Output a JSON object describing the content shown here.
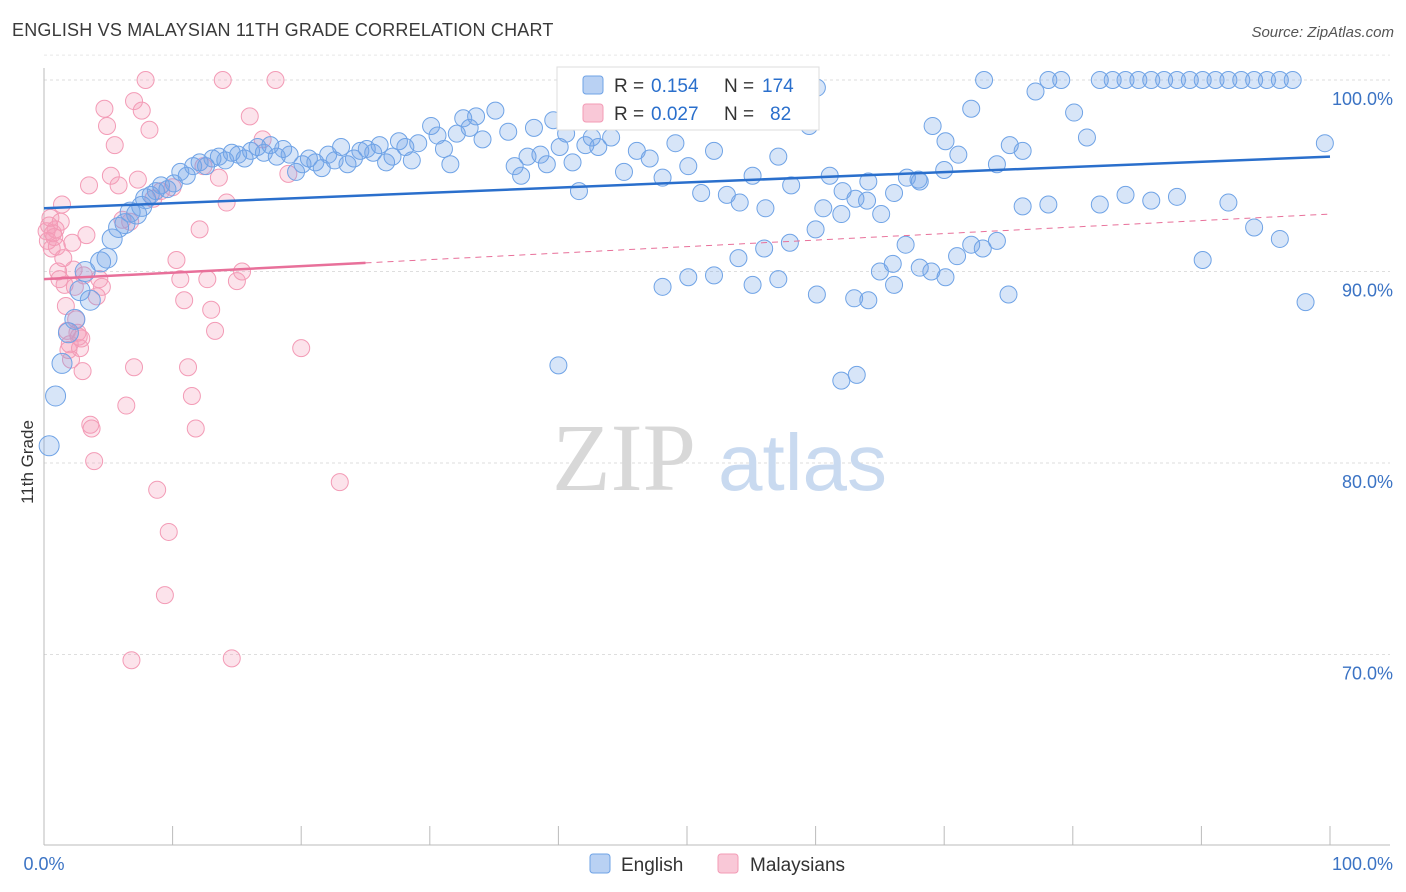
{
  "title": "ENGLISH VS MALAYSIAN 11TH GRADE CORRELATION CHART",
  "source": "Source: ZipAtlas.com",
  "watermark": {
    "zip": "ZIP",
    "atlas": "atlas"
  },
  "legend_box": {
    "rows": [
      {
        "r_label": "R =",
        "r_value": "0.154",
        "n_label": "N =",
        "n_value": "174",
        "color": "#6fa3e6"
      },
      {
        "r_label": "R =",
        "r_value": "0.027",
        "n_label": "N =",
        "n_value": "82",
        "color": "#f39bb6"
      }
    ]
  },
  "bottom_legend": [
    "English",
    "Malaysians"
  ],
  "chart_data": {
    "type": "scatter",
    "title": "ENGLISH VS MALAYSIAN 11TH GRADE CORRELATION CHART",
    "xlabel": "",
    "ylabel": "11th Grade",
    "xlim": [
      0,
      100
    ],
    "ylim": [
      60.5,
      101.5
    ],
    "x_tick_labels": [
      "0.0%",
      "100.0%"
    ],
    "y_ticks": [
      70,
      80,
      90,
      100
    ],
    "y_tick_labels": [
      "70.0%",
      "80.0%",
      "90.0%",
      "100.0%"
    ],
    "grid": true,
    "legend_position": "top-center",
    "series": [
      {
        "name": "English",
        "color": "#6fa3e6",
        "line_color": "#2a6fcc",
        "trend": {
          "x": [
            0,
            100
          ],
          "y": [
            93.3,
            96.0
          ],
          "dashed_from": null
        },
        "points": [
          [
            0.4,
            80.9
          ],
          [
            0.9,
            83.5
          ],
          [
            1.4,
            85.2
          ],
          [
            1.9,
            86.8
          ],
          [
            2.4,
            87.5
          ],
          [
            2.8,
            89.0
          ],
          [
            3.2,
            90.0
          ],
          [
            3.6,
            88.5
          ],
          [
            4.4,
            90.5
          ],
          [
            4.9,
            90.7
          ],
          [
            5.3,
            91.7
          ],
          [
            5.8,
            92.3
          ],
          [
            6.3,
            92.5
          ],
          [
            6.7,
            93.1
          ],
          [
            7.2,
            93.0
          ],
          [
            7.6,
            93.4
          ],
          [
            7.9,
            93.8
          ],
          [
            8.3,
            94.0
          ],
          [
            8.7,
            94.2
          ],
          [
            9.1,
            94.5
          ],
          [
            9.6,
            94.3
          ],
          [
            10.1,
            94.6
          ],
          [
            10.6,
            95.2
          ],
          [
            11.1,
            95.0
          ],
          [
            11.6,
            95.5
          ],
          [
            12.1,
            95.7
          ],
          [
            12.6,
            95.5
          ],
          [
            13.1,
            95.9
          ],
          [
            13.6,
            96.0
          ],
          [
            14.1,
            95.8
          ],
          [
            14.6,
            96.2
          ],
          [
            15.1,
            96.1
          ],
          [
            15.6,
            95.9
          ],
          [
            16.1,
            96.3
          ],
          [
            16.6,
            96.5
          ],
          [
            17.1,
            96.2
          ],
          [
            17.6,
            96.6
          ],
          [
            18.1,
            96.0
          ],
          [
            18.6,
            96.4
          ],
          [
            19.1,
            96.1
          ],
          [
            19.6,
            95.2
          ],
          [
            20.1,
            95.6
          ],
          [
            20.6,
            95.9
          ],
          [
            21.1,
            95.7
          ],
          [
            21.6,
            95.4
          ],
          [
            22.1,
            96.1
          ],
          [
            22.6,
            95.8
          ],
          [
            23.1,
            96.5
          ],
          [
            23.6,
            95.6
          ],
          [
            24.1,
            95.9
          ],
          [
            24.6,
            96.3
          ],
          [
            25.1,
            96.4
          ],
          [
            25.6,
            96.2
          ],
          [
            26.1,
            96.6
          ],
          [
            26.6,
            95.7
          ],
          [
            27.1,
            96.0
          ],
          [
            27.6,
            96.8
          ],
          [
            28.1,
            96.5
          ],
          [
            28.6,
            95.8
          ],
          [
            29.1,
            96.7
          ],
          [
            30.1,
            97.6
          ],
          [
            30.6,
            97.1
          ],
          [
            31.1,
            96.4
          ],
          [
            31.6,
            95.6
          ],
          [
            32.1,
            97.2
          ],
          [
            32.6,
            98.0
          ],
          [
            33.1,
            97.5
          ],
          [
            33.6,
            98.1
          ],
          [
            34.1,
            96.9
          ],
          [
            35.1,
            98.4
          ],
          [
            36.1,
            97.3
          ],
          [
            36.6,
            95.5
          ],
          [
            37.1,
            95.0
          ],
          [
            37.6,
            96.0
          ],
          [
            38.1,
            97.5
          ],
          [
            38.6,
            96.1
          ],
          [
            39.1,
            95.6
          ],
          [
            39.6,
            97.9
          ],
          [
            40.1,
            96.5
          ],
          [
            40.6,
            97.2
          ],
          [
            41.1,
            95.7
          ],
          [
            41.6,
            94.2
          ],
          [
            42.1,
            96.6
          ],
          [
            42.6,
            97.0
          ],
          [
            43.1,
            96.5
          ],
          [
            44.1,
            97.0
          ],
          [
            45.1,
            95.2
          ],
          [
            46.1,
            96.3
          ],
          [
            47.1,
            95.9
          ],
          [
            48.1,
            94.9
          ],
          [
            49.1,
            96.7
          ],
          [
            50.1,
            95.5
          ],
          [
            51.1,
            94.1
          ],
          [
            52.1,
            96.3
          ],
          [
            53.1,
            94.0
          ],
          [
            54.1,
            93.6
          ],
          [
            55.1,
            95.0
          ],
          [
            56.1,
            93.3
          ],
          [
            57.1,
            96.0
          ],
          [
            58.1,
            94.5
          ],
          [
            58.9,
            100.0
          ],
          [
            59.5,
            97.6
          ],
          [
            60.1,
            99.6
          ],
          [
            60.6,
            93.3
          ],
          [
            61.1,
            95.0
          ],
          [
            62.1,
            94.2
          ],
          [
            63.1,
            93.8
          ],
          [
            64.1,
            94.7
          ],
          [
            65.1,
            93.0
          ],
          [
            66.1,
            94.1
          ],
          [
            67.1,
            94.9
          ],
          [
            68.1,
            94.7
          ],
          [
            69.1,
            97.6
          ],
          [
            70.1,
            96.8
          ],
          [
            71.1,
            96.1
          ],
          [
            72.1,
            98.5
          ],
          [
            73.1,
            100.0
          ],
          [
            74.1,
            95.6
          ],
          [
            75.1,
            96.6
          ],
          [
            76.1,
            96.3
          ],
          [
            77.1,
            99.4
          ],
          [
            78.1,
            100.0
          ],
          [
            79.1,
            100.0
          ],
          [
            80.1,
            98.3
          ],
          [
            81.1,
            97.0
          ],
          [
            82.1,
            100.0
          ],
          [
            83.1,
            100.0
          ],
          [
            84.1,
            100.0
          ],
          [
            85.1,
            100.0
          ],
          [
            86.1,
            100.0
          ],
          [
            87.1,
            100.0
          ],
          [
            88.1,
            100.0
          ],
          [
            89.1,
            100.0
          ],
          [
            90.1,
            100.0
          ],
          [
            91.1,
            100.0
          ],
          [
            92.1,
            100.0
          ],
          [
            93.1,
            100.0
          ],
          [
            94.1,
            100.0
          ],
          [
            95.1,
            100.0
          ],
          [
            96.1,
            100.0
          ],
          [
            97.1,
            100.0
          ],
          [
            99.6,
            96.7
          ],
          [
            62.0,
            84.3
          ],
          [
            63.2,
            84.6
          ],
          [
            48.1,
            89.2
          ],
          [
            50.1,
            89.7
          ],
          [
            52.1,
            89.8
          ],
          [
            55.1,
            89.3
          ],
          [
            57.1,
            89.6
          ],
          [
            60.1,
            88.8
          ],
          [
            64.1,
            88.5
          ],
          [
            66.1,
            89.3
          ],
          [
            68.1,
            90.2
          ],
          [
            70.1,
            89.7
          ],
          [
            72.1,
            91.4
          ],
          [
            74.1,
            91.6
          ],
          [
            76.1,
            93.4
          ],
          [
            78.1,
            93.5
          ],
          [
            82.1,
            93.5
          ],
          [
            84.1,
            94.0
          ],
          [
            86.1,
            93.7
          ],
          [
            88.1,
            93.9
          ],
          [
            90.1,
            90.6
          ],
          [
            92.1,
            93.6
          ],
          [
            94.1,
            92.3
          ],
          [
            96.1,
            91.7
          ],
          [
            98.1,
            88.4
          ],
          [
            63.0,
            88.6
          ],
          [
            65.0,
            90.0
          ],
          [
            67.0,
            91.4
          ],
          [
            69.0,
            90.0
          ],
          [
            71.0,
            90.8
          ],
          [
            73.0,
            91.2
          ],
          [
            75.0,
            88.8
          ],
          [
            40.0,
            85.1
          ],
          [
            54.0,
            90.7
          ],
          [
            56.0,
            91.2
          ],
          [
            58.0,
            91.5
          ],
          [
            60.0,
            92.2
          ],
          [
            62.0,
            93.0
          ],
          [
            64.0,
            93.7
          ],
          [
            66.0,
            90.4
          ],
          [
            68.0,
            94.8
          ],
          [
            70.0,
            95.3
          ]
        ]
      },
      {
        "name": "Malaysians",
        "color": "#f39bb6",
        "line_color": "#e8709a",
        "trend": {
          "x": [
            0,
            100
          ],
          "y": [
            89.6,
            93.0
          ],
          "solid_until": 25
        },
        "points": [
          [
            0.2,
            92.1
          ],
          [
            0.3,
            91.6
          ],
          [
            0.4,
            92.4
          ],
          [
            0.5,
            92.8
          ],
          [
            0.6,
            91.2
          ],
          [
            0.7,
            92.0
          ],
          [
            0.8,
            91.8
          ],
          [
            0.9,
            92.2
          ],
          [
            1.0,
            91.3
          ],
          [
            1.1,
            90.0
          ],
          [
            1.2,
            89.6
          ],
          [
            1.3,
            92.6
          ],
          [
            1.4,
            93.5
          ],
          [
            1.5,
            90.7
          ],
          [
            1.6,
            89.3
          ],
          [
            1.7,
            88.2
          ],
          [
            1.8,
            86.9
          ],
          [
            1.9,
            85.9
          ],
          [
            2.0,
            86.2
          ],
          [
            2.1,
            85.4
          ],
          [
            2.2,
            91.5
          ],
          [
            2.3,
            90.1
          ],
          [
            2.4,
            89.2
          ],
          [
            2.5,
            87.5
          ],
          [
            2.6,
            86.8
          ],
          [
            2.7,
            86.6
          ],
          [
            2.8,
            86.0
          ],
          [
            2.9,
            86.5
          ],
          [
            3.0,
            84.8
          ],
          [
            3.1,
            89.8
          ],
          [
            3.3,
            91.9
          ],
          [
            3.5,
            94.5
          ],
          [
            3.6,
            82.0
          ],
          [
            3.7,
            81.8
          ],
          [
            3.9,
            80.1
          ],
          [
            4.1,
            88.7
          ],
          [
            4.3,
            89.6
          ],
          [
            4.5,
            89.2
          ],
          [
            4.7,
            98.5
          ],
          [
            4.9,
            97.6
          ],
          [
            5.2,
            95.0
          ],
          [
            5.5,
            96.6
          ],
          [
            5.8,
            94.5
          ],
          [
            6.1,
            92.7
          ],
          [
            6.4,
            83.0
          ],
          [
            6.7,
            92.6
          ],
          [
            7.0,
            98.9
          ],
          [
            7.3,
            94.8
          ],
          [
            7.6,
            98.4
          ],
          [
            7.9,
            100.0
          ],
          [
            8.2,
            97.4
          ],
          [
            8.5,
            93.8
          ],
          [
            8.8,
            78.6
          ],
          [
            9.1,
            94.2
          ],
          [
            9.4,
            73.1
          ],
          [
            9.7,
            76.4
          ],
          [
            10.0,
            94.4
          ],
          [
            10.3,
            90.6
          ],
          [
            10.6,
            89.6
          ],
          [
            10.9,
            88.5
          ],
          [
            11.2,
            85.0
          ],
          [
            11.5,
            83.5
          ],
          [
            11.8,
            81.8
          ],
          [
            12.1,
            92.2
          ],
          [
            12.4,
            95.5
          ],
          [
            12.7,
            89.6
          ],
          [
            13.0,
            88.0
          ],
          [
            13.3,
            86.9
          ],
          [
            13.6,
            94.9
          ],
          [
            13.9,
            100.0
          ],
          [
            14.2,
            93.6
          ],
          [
            14.6,
            69.8
          ],
          [
            15.0,
            89.5
          ],
          [
            15.4,
            90.0
          ],
          [
            16.0,
            98.1
          ],
          [
            17.0,
            96.9
          ],
          [
            18.0,
            100.0
          ],
          [
            19.0,
            95.1
          ],
          [
            7.0,
            85.0
          ],
          [
            6.8,
            69.7
          ],
          [
            20.0,
            86.0
          ],
          [
            23.0,
            79.0
          ]
        ]
      }
    ]
  }
}
